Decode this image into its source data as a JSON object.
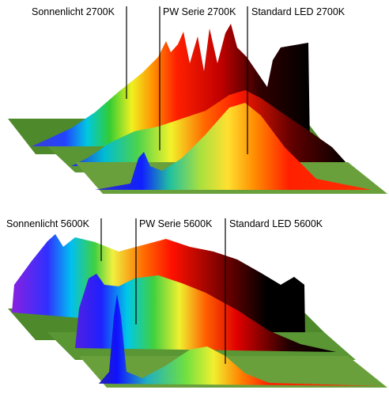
{
  "panels": [
    {
      "labels": [
        "Sonnenlicht 2700K",
        "PW Serie 2700K",
        "Standard LED 2700K"
      ]
    },
    {
      "labels": [
        "Sonnenlicht 5600K",
        "PW Serie 5600K",
        "Standard LED 5600K"
      ]
    }
  ]
}
